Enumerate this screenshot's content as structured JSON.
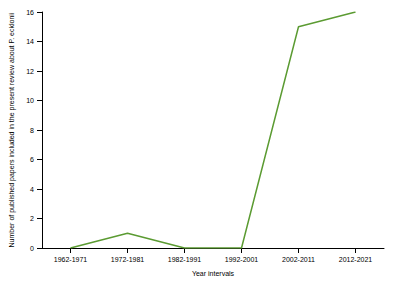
{
  "chart_data": {
    "type": "line",
    "x_label": "Year intervals",
    "y_label": "Number of published papers included in the present review about P. ecklonii",
    "categories": [
      "1962-1971",
      "1972-1981",
      "1982-1991",
      "1992-2001",
      "2002-2011",
      "2012-2021"
    ],
    "values": [
      0,
      1,
      0,
      0,
      15,
      16
    ],
    "color": "#5b9b32",
    "marker": "none",
    "ylim": [
      0,
      16
    ],
    "yticks": [
      0,
      2,
      4,
      6,
      8,
      10,
      12,
      14,
      16
    ],
    "grid": false
  }
}
